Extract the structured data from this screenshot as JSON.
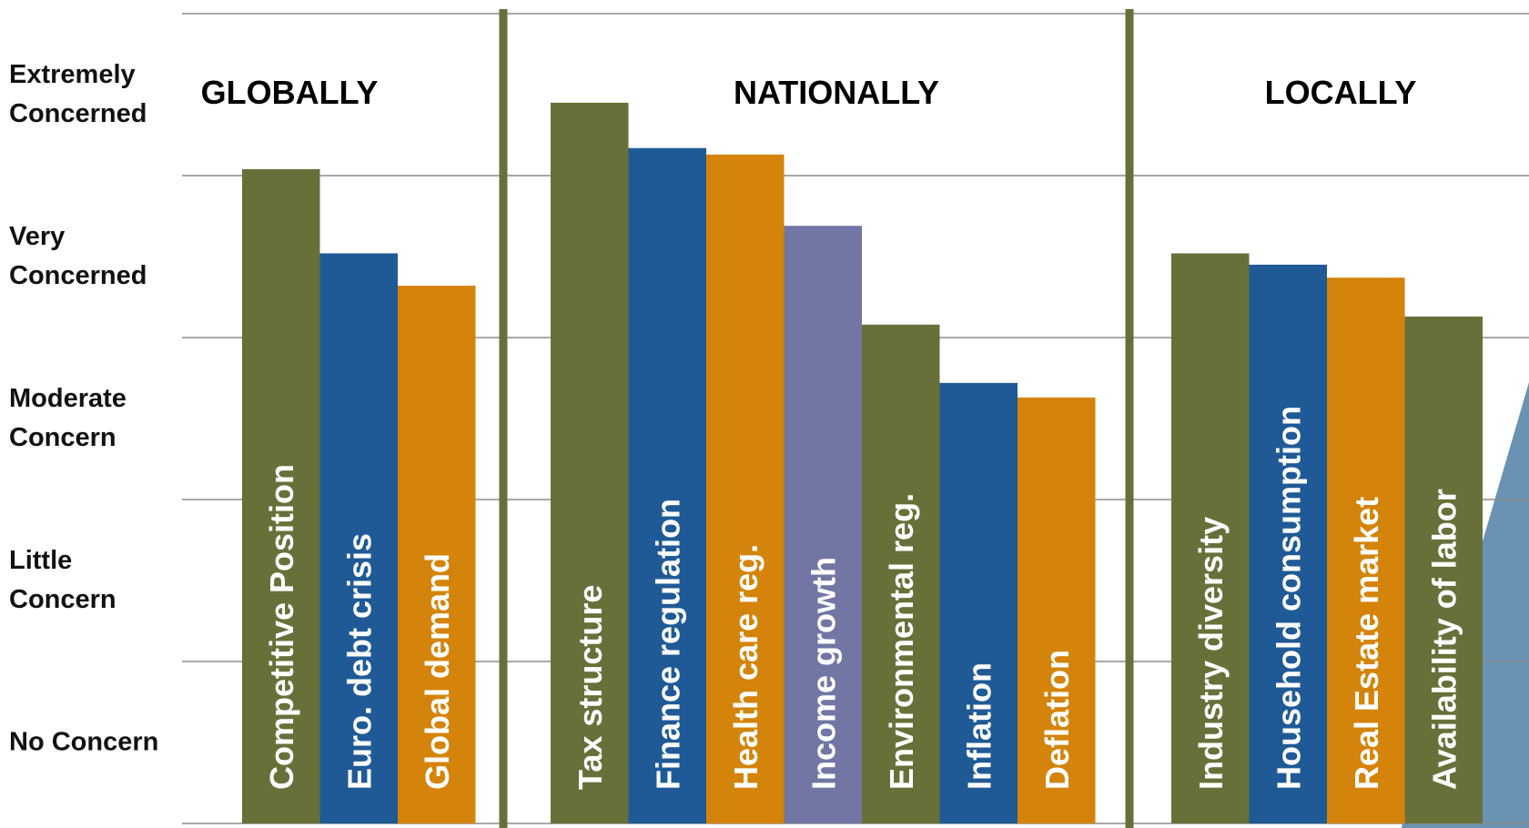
{
  "chart_data": {
    "type": "grouped-bar",
    "ylim": [
      0,
      5
    ],
    "grid_lines": [
      0,
      1,
      2,
      3,
      4,
      5
    ],
    "yticks": [
      {
        "value": 4.5,
        "label": "Extremely Concerned"
      },
      {
        "value": 3.5,
        "label": "Very Concerned"
      },
      {
        "value": 2.5,
        "label": "Moderate Concern"
      },
      {
        "value": 1.5,
        "label": "Little Concern"
      },
      {
        "value": 0.5,
        "label": "No Concern"
      }
    ],
    "separator_color": "#68703a",
    "groups": [
      {
        "name": "GLOBALLY",
        "categories": [
          "Competitive Position",
          "Euro. debt crisis",
          "Global demand"
        ],
        "values": [
          4.04,
          3.52,
          3.32
        ],
        "colors": [
          "#68703a",
          "#1f5a96",
          "#d4840a"
        ]
      },
      {
        "name": "NATIONALLY",
        "categories": [
          "Tax structure",
          "Finance regulation",
          "Health care reg.",
          "Income growth",
          "Environmental reg.",
          "Inflation",
          "Deflation"
        ],
        "values": [
          4.45,
          4.17,
          4.13,
          3.69,
          3.08,
          2.72,
          2.63
        ],
        "colors": [
          "#68703a",
          "#1f5a96",
          "#d4840a",
          "#7276a4",
          "#68703a",
          "#1f5a96",
          "#d4840a"
        ]
      },
      {
        "name": "LOCALLY",
        "categories": [
          "Industry diversity",
          "Household consumption",
          "Real Estate market",
          "Availability of labor"
        ],
        "values": [
          3.52,
          3.45,
          3.37,
          3.13
        ],
        "colors": [
          "#68703a",
          "#1f5a96",
          "#d4840a",
          "#68703a"
        ]
      }
    ]
  }
}
